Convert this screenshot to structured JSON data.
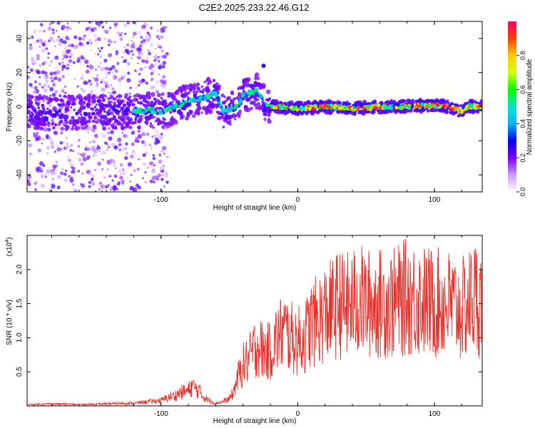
{
  "title": "C2E2.2025.233.22.46.G12",
  "chart_data": [
    {
      "type": "heatmap",
      "name": "spectrogram",
      "xlabel": "Height of straight line (km)",
      "ylabel": "Frequency (Hz)",
      "xlim": [
        -198,
        135
      ],
      "ylim": [
        -50,
        50
      ],
      "xticks": [
        -100,
        0,
        100
      ],
      "yticks": [
        -40,
        -20,
        0,
        20,
        40
      ],
      "ridge": {
        "x": [
          -198,
          -150,
          -120,
          -110,
          -100,
          -90,
          -80,
          -70,
          -60,
          -55,
          -50,
          -45,
          -42,
          -40,
          -35,
          -30,
          -25,
          -20,
          0,
          20,
          40,
          60,
          80,
          100,
          110,
          115,
          120,
          125,
          130,
          135
        ],
        "y": [
          -3,
          -3,
          -3,
          -2,
          -3,
          0,
          3,
          5,
          8,
          -3,
          -2,
          0,
          3,
          7,
          8,
          9,
          3,
          0,
          -1,
          0,
          -1,
          0,
          0,
          1,
          0,
          -1,
          -3,
          0,
          0,
          0
        ]
      },
      "colorbar": {
        "label": "Normalized spectral amplitude",
        "range": [
          0,
          1
        ],
        "ticks": [
          "0.0",
          "0.2",
          "0.4",
          "0.6",
          "0.8"
        ],
        "colors": [
          "#ffffff",
          "#cc99ff",
          "#7a00ff",
          "#0000ff",
          "#00b4ff",
          "#00e5c8",
          "#00ff00",
          "#d2ff00",
          "#ffcc00",
          "#ff4000",
          "#ff0066"
        ]
      }
    },
    {
      "type": "line",
      "name": "snr",
      "xlabel": "Height of straight line (km)",
      "ylabel": "SNR (10 * v/v)",
      "scale_label": "(x10^4)",
      "xlim": [
        -198,
        135
      ],
      "ylim": [
        0,
        2.5
      ],
      "xticks": [
        -100,
        0,
        100
      ],
      "yticks": [
        0.5,
        1.0,
        1.5,
        2.0
      ],
      "ytick_labels": [
        "0.5",
        "1.0",
        "1.5",
        "2.0"
      ],
      "series": [
        {
          "name": "SNR",
          "color": "#e8322c",
          "x": [
            -198,
            -180,
            -160,
            -140,
            -120,
            -110,
            -100,
            -95,
            -90,
            -85,
            -80,
            -77,
            -75,
            -72,
            -70,
            -65,
            -60,
            -55,
            -50,
            -47,
            -45,
            -42,
            -40,
            -35,
            -30,
            -25,
            -20,
            -15,
            -10,
            -5,
            0,
            5,
            10,
            15,
            20,
            25,
            30,
            35,
            40,
            45,
            50,
            60,
            70,
            80,
            90,
            100,
            110,
            120,
            125,
            130,
            135
          ],
          "values": [
            0.02,
            0.03,
            0.02,
            0.03,
            0.04,
            0.06,
            0.08,
            0.12,
            0.15,
            0.2,
            0.22,
            0.3,
            0.25,
            0.22,
            0.15,
            0.08,
            0.04,
            0.06,
            0.1,
            0.2,
            0.35,
            0.5,
            0.6,
            0.7,
            0.9,
            0.8,
            0.8,
            1.0,
            1.1,
            1.0,
            0.95,
            1.0,
            1.2,
            1.25,
            1.35,
            1.4,
            1.5,
            1.45,
            1.5,
            1.55,
            1.5,
            1.5,
            1.5,
            1.6,
            1.55,
            1.5,
            1.5,
            1.4,
            1.5,
            1.6,
            1.5
          ]
        }
      ]
    }
  ]
}
